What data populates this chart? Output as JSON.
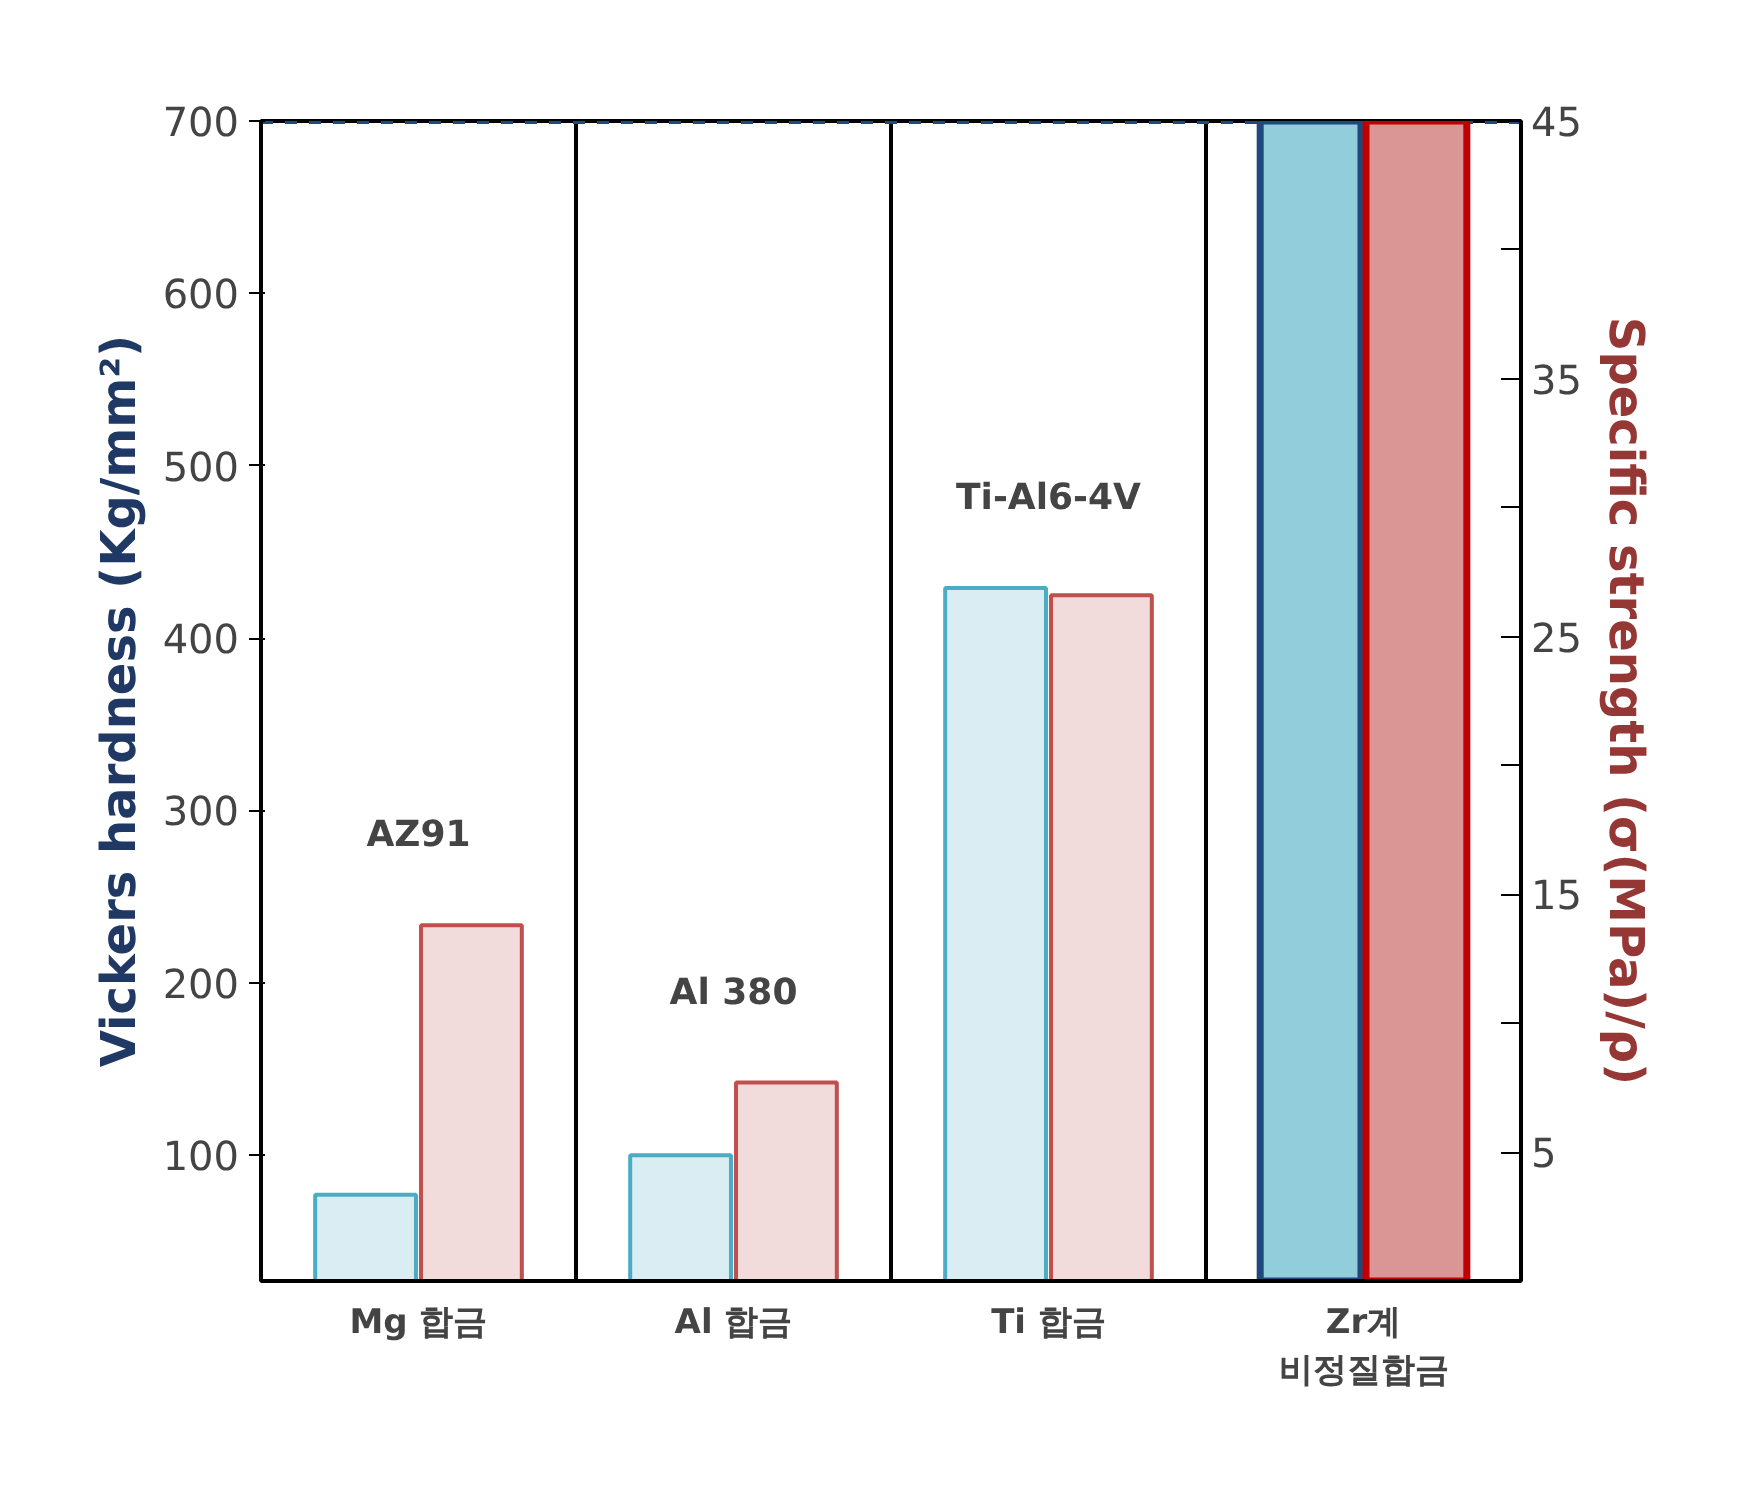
{
  "chart_data": {
    "type": "bar",
    "ylabel": "Vickers hardness (Kg/mm²)",
    "y2label": "Specific strength (σ(MPa)/ρ)",
    "categories": [
      "Mg 합금",
      "Al 합금",
      "Ti 합금",
      "Zr계\n비정질합금"
    ],
    "series": [
      {
        "color": "#4bacc6",
        "colors": [
          "#daedf2",
          "#daedf2",
          "#daedf2",
          "#92cddc"
        ],
        "values": [
          77,
          100,
          429,
          700
        ]
      },
      {
        "color": "#c0504d",
        "colors": [
          "#f2dcdb",
          "#f2dcdb",
          "#f2dcdb",
          "#d99694"
        ],
        "values": [
          13.8,
          7.7,
          26.6,
          45
        ],
        "axis": "y2"
      }
    ],
    "ylim": [
      27,
      700
    ],
    "yticks": [
      100,
      200,
      300,
      400,
      500,
      600,
      700
    ],
    "y2lim": [
      0,
      45
    ],
    "y2ticks": [
      5,
      {
        "value": 10,
        "label": null
      },
      15,
      {
        "value": 20,
        "label": null
      },
      25,
      {
        "value": 30,
        "label": null
      },
      35,
      {
        "value": 40,
        "label": null
      },
      45
    ],
    "ref_lines": [
      {
        "axis": "y",
        "value": 700,
        "color": "#1f497d",
        "line_style": "dashed"
      }
    ],
    "annotations": [
      "AZ91",
      "Al 380",
      "Ti-Al6-4V"
    ],
    "grid": false
  }
}
